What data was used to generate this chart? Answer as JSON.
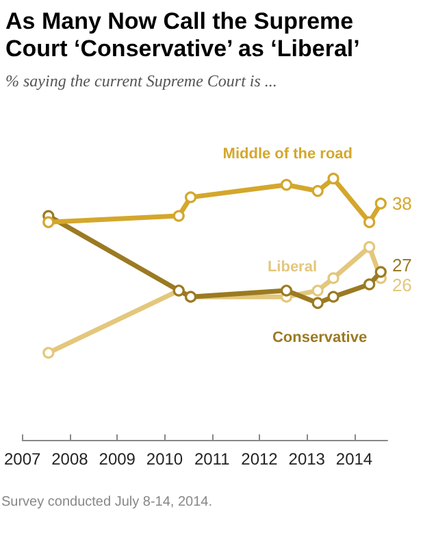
{
  "chart_data": {
    "type": "line",
    "title": "As Many Now Call the Supreme Court ‘Conservative’ as ‘Liberal’",
    "subtitle": "% saying the current Supreme Court is ...",
    "x": [
      2007.55,
      2010.3,
      2010.55,
      2012.57,
      2013.23,
      2013.56,
      2014.32,
      2014.56
    ],
    "series": [
      {
        "name": "Middle of the road",
        "color": "#d4a72c",
        "values": [
          35,
          36,
          39,
          41,
          40,
          42,
          35,
          38
        ],
        "value_labels": [
          null,
          null,
          null,
          null,
          null,
          null,
          null,
          "38"
        ]
      },
      {
        "name": "Conservative",
        "color": "#9b7a22",
        "values": [
          36,
          24,
          23,
          24,
          22,
          23,
          25,
          27
        ],
        "value_labels": [
          null,
          null,
          null,
          null,
          null,
          null,
          null,
          "27"
        ]
      },
      {
        "name": "Liberal",
        "color": "#e3c77c",
        "values": [
          14,
          24,
          23,
          23,
          24,
          26,
          31,
          26
        ],
        "value_labels": [
          null,
          null,
          null,
          null,
          null,
          null,
          null,
          "26"
        ]
      }
    ],
    "xlim": [
      2007,
      2014.7
    ],
    "xticks": [
      2007,
      2008,
      2009,
      2010,
      2011,
      2012,
      2013,
      2014
    ],
    "tick_labels": "x",
    "grid": false,
    "legend": false,
    "marker": "circle",
    "line_style": "solid",
    "annotations": [
      "Survey conducted July 8-14, 2014."
    ]
  }
}
